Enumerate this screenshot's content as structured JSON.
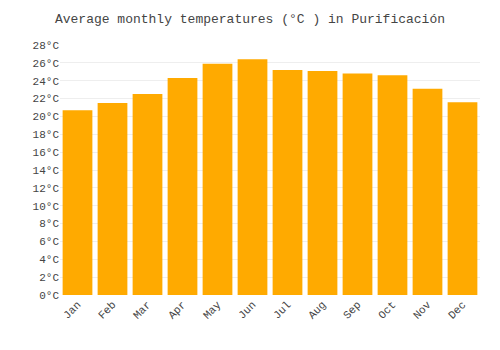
{
  "chart_data": {
    "type": "bar",
    "title": "Average monthly temperatures (°C ) in Purificación",
    "categories": [
      "Jan",
      "Feb",
      "Mar",
      "Apr",
      "May",
      "Jun",
      "Jul",
      "Aug",
      "Sep",
      "Oct",
      "Nov",
      "Dec"
    ],
    "values": [
      20.7,
      21.5,
      22.5,
      24.3,
      25.9,
      26.4,
      25.2,
      25.1,
      24.8,
      24.6,
      23.1,
      21.6
    ],
    "color": "#FFAA00",
    "ylim": [
      0,
      28
    ],
    "yticks": [
      {
        "value": 0,
        "label": "0°C"
      },
      {
        "value": 2,
        "label": "2°C"
      },
      {
        "value": 4,
        "label": "4°C"
      },
      {
        "value": 6,
        "label": "6°C"
      },
      {
        "value": 8,
        "label": "8°C"
      },
      {
        "value": 10,
        "label": "10°C"
      },
      {
        "value": 12,
        "label": "12°C"
      },
      {
        "value": 14,
        "label": "14°C"
      },
      {
        "value": 16,
        "label": "16°C"
      },
      {
        "value": 18,
        "label": "18°C"
      },
      {
        "value": 20,
        "label": "20°C"
      },
      {
        "value": 22,
        "label": "22°C"
      },
      {
        "value": 24,
        "label": "24°C"
      },
      {
        "value": 26,
        "label": "26°C"
      },
      {
        "value": 28,
        "label": "28°C"
      }
    ],
    "grid": true
  }
}
